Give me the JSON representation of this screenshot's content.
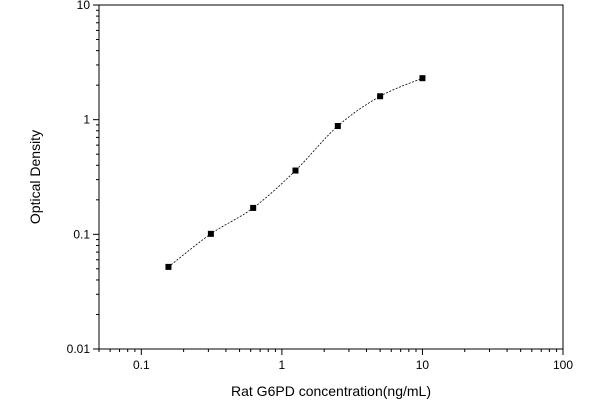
{
  "chart_data": {
    "type": "scatter",
    "title": "",
    "xlabel": "Rat G6PD concentration(ng/mL)",
    "ylabel": "Optical Density",
    "xscale": "log",
    "yscale": "log",
    "xlim": [
      0.05,
      100
    ],
    "ylim": [
      0.01,
      10
    ],
    "grid": false,
    "legend": "none",
    "x_ticks": [
      {
        "value": 0.1,
        "label": "0.1"
      },
      {
        "value": 1,
        "label": "1"
      },
      {
        "value": 10,
        "label": "10"
      },
      {
        "value": 100,
        "label": "100"
      }
    ],
    "y_ticks": [
      {
        "value": 0.01,
        "label": "0.01"
      },
      {
        "value": 0.1,
        "label": "0.1"
      },
      {
        "value": 1,
        "label": "1"
      },
      {
        "value": 10,
        "label": "10"
      }
    ],
    "series": [
      {
        "x": [
          0.156,
          0.3125,
          0.625,
          1.25,
          2.5,
          5,
          10
        ],
        "y": [
          0.052,
          0.101,
          0.17,
          0.36,
          0.88,
          1.6,
          2.3
        ],
        "marker": "square",
        "color": "#000000",
        "fit_curve": "dashed"
      }
    ]
  }
}
